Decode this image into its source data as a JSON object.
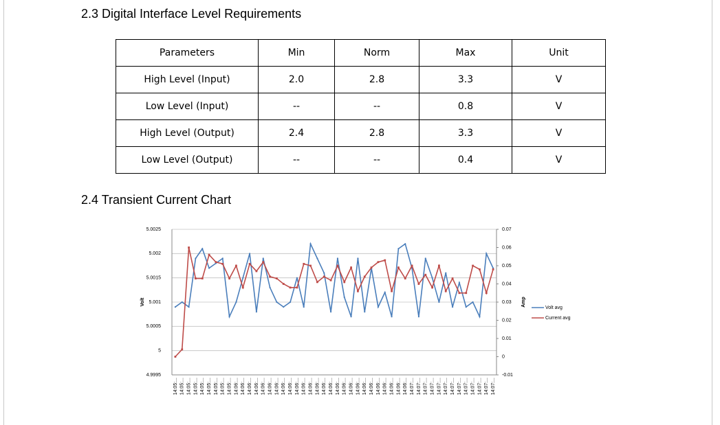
{
  "header": {
    "title": "2.3 Digital Interface Level Requirements"
  },
  "table": {
    "header": [
      "Parameters",
      "Min",
      "Norm",
      "Max",
      "Unit"
    ],
    "rows": [
      [
        "High Level (Input)",
        "2.0",
        "2.8",
        "3.3",
        "V"
      ],
      [
        "Low Level (Input)",
        "--",
        "--",
        "0.8",
        "V"
      ],
      [
        "High Level (Output)",
        "2.4",
        "2.8",
        "3.3",
        "V"
      ],
      [
        "Low Level (Output)",
        "--",
        "--",
        "0.4",
        "V"
      ]
    ]
  },
  "section2": {
    "title": "2.4 Transient Current Chart"
  },
  "chart_data": {
    "type": "line",
    "y_label": "Volt",
    "y2_label": "Amp",
    "categories": [
      "14:05:...",
      "14:05:...",
      "14:05:...",
      "14:05:...",
      "14:05:...",
      "14:05:...",
      "14:05:...",
      "14:05:...",
      "14:05:...",
      "14:06:...",
      "14:06:...",
      "14:06:...",
      "14:06:...",
      "14:06:...",
      "14:06:...",
      "14:06:...",
      "14:06:...",
      "14:06:...",
      "14:06:...",
      "14:06:...",
      "14:06:...",
      "14:06:...",
      "14:06:...",
      "14:06:...",
      "14:06:...",
      "14:06:...",
      "14:06:...",
      "14:06:...",
      "14:06:...",
      "14:06:...",
      "14:06:...",
      "14:06:...",
      "14:06:...",
      "14:06:...",
      "14:06:...",
      "14:07:...",
      "14:07:...",
      "14:07:...",
      "14:07:...",
      "14:07:...",
      "14:07:...",
      "14:07:...",
      "14:07:...",
      "14:07:...",
      "14:07:...",
      "14:07:...",
      "14:07:...",
      "14:07:..."
    ],
    "series": [
      {
        "name": "Volt avg",
        "color": "#4a7ebb",
        "values": [
          5.0009,
          5.001,
          5.0009,
          5.0019,
          5.0021,
          5.0017,
          5.0018,
          5.0019,
          5.0007,
          5.001,
          5.0015,
          5.002,
          5.0008,
          5.0019,
          5.0013,
          5.001,
          5.0009,
          5.001,
          5.0015,
          5.0009,
          5.0022,
          5.0019,
          5.0016,
          5.0008,
          5.0019,
          5.0011,
          5.0007,
          5.0019,
          5.0008,
          5.0017,
          5.0009,
          5.0012,
          5.0007,
          5.0021,
          5.0022,
          5.0017,
          5.0007,
          5.0019,
          5.0015,
          5.001,
          5.0016,
          5.0009,
          5.0014,
          5.0009,
          5.001,
          5.0007,
          5.002,
          5.0017
        ]
      },
      {
        "name": "Current avg",
        "color": "#be4b48",
        "axis": "y2",
        "values": [
          0,
          0.004,
          0.06,
          0.043,
          0.043,
          0.056,
          0.052,
          0.051,
          0.043,
          0.05,
          0.038,
          0.051,
          0.047,
          0.052,
          0.044,
          0.043,
          0.04,
          0.038,
          0.038,
          0.051,
          0.05,
          0.041,
          0.044,
          0.042,
          0.05,
          0.041,
          0.049,
          0.036,
          0.044,
          0.049,
          0.052,
          0.053,
          0.036,
          0.049,
          0.043,
          0.05,
          0.04,
          0.045,
          0.038,
          0.05,
          0.036,
          0.043,
          0.035,
          0.035,
          0.05,
          0.048,
          0.035,
          0.048
        ]
      }
    ],
    "ylim": [
      4.9995,
      5.0025
    ],
    "yticks": [
      4.9995,
      5,
      5.0005,
      5.001,
      5.0015,
      5.002,
      5.0025
    ],
    "y2lim": [
      -0.01,
      0.07
    ],
    "y2ticks": [
      -0.01,
      0,
      0.01,
      0.02,
      0.03,
      0.04,
      0.05,
      0.06,
      0.07
    ],
    "grid": true,
    "legend": "right"
  }
}
